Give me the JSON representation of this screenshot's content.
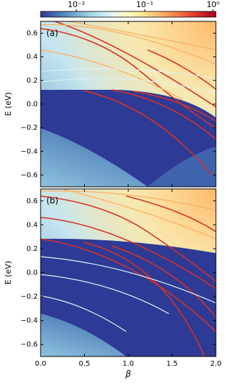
{
  "chart_data": [
    {
      "type": "heatmap",
      "panel_label": "(a)",
      "ylabel": "E (eV)",
      "xlim": [
        0,
        2
      ],
      "xticks": [
        0,
        0.5,
        1,
        1.5,
        2
      ],
      "ylim": [
        -0.7,
        0.7
      ],
      "yticks": [
        {
          "value": 0.6,
          "label": "0.6"
        },
        {
          "value": 0.4,
          "label": "0.4"
        },
        {
          "value": 0.2,
          "label": "0.2"
        },
        {
          "value": 0,
          "label": "0.0"
        },
        {
          "value": -0.2,
          "label": "−0.2"
        },
        {
          "value": -0.4,
          "label": "−0.4"
        },
        {
          "value": -0.6,
          "label": "−0.6"
        }
      ],
      "colorbar": {
        "scale": "log",
        "clim": [
          0.003,
          1.1
        ],
        "ticks": [
          {
            "value": 0.01,
            "label": "10⁻²"
          },
          {
            "value": 0.1,
            "label": "10⁻¹"
          },
          {
            "value": 1,
            "label": "10⁰"
          }
        ],
        "colors": [
          "#313695",
          "#4575b4",
          "#74add1",
          "#abd9e9",
          "#e0f3f8",
          "#ffffbf",
          "#fee090",
          "#fdae61",
          "#f46d43",
          "#d73027",
          "#a50026"
        ]
      }
    },
    {
      "type": "heatmap",
      "panel_label": "(b)",
      "ylabel": "E (eV)",
      "xlabel": "β",
      "xlim": [
        0,
        2
      ],
      "xticks": [
        {
          "value": 0,
          "label": "0.0"
        },
        {
          "value": 0.5,
          "label": "0.5"
        },
        {
          "value": 1,
          "label": "1.0"
        },
        {
          "value": 1.5,
          "label": "1.5"
        },
        {
          "value": 2,
          "label": "2.0"
        }
      ],
      "ylim": [
        -0.7,
        0.7
      ],
      "yticks": [
        {
          "value": 0.6,
          "label": "0.6"
        },
        {
          "value": 0.4,
          "label": "0.4"
        },
        {
          "value": 0.2,
          "label": "0.2"
        },
        {
          "value": 0,
          "label": "0.0"
        },
        {
          "value": -0.2,
          "label": "−0.2"
        },
        {
          "value": -0.4,
          "label": "−0.4"
        },
        {
          "value": -0.6,
          "label": "−0.6"
        }
      ]
    }
  ]
}
